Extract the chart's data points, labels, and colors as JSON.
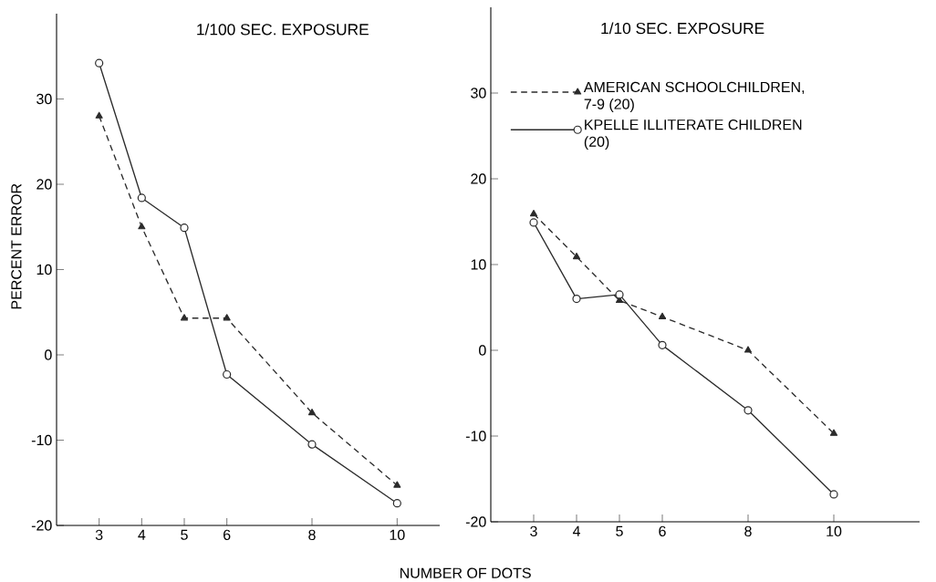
{
  "chart_data": [
    {
      "type": "line",
      "title": "1/100 SEC. EXPOSURE",
      "xlabel": "NUMBER OF DOTS",
      "ylabel": "PERCENT ERROR",
      "x": [
        3,
        4,
        5,
        6,
        8,
        10
      ],
      "xlim": [
        2,
        11
      ],
      "ylim": [
        -20,
        40
      ],
      "xticks": [
        3,
        4,
        5,
        6,
        8,
        10
      ],
      "yticks": [
        -20,
        -10,
        0,
        10,
        20,
        30
      ],
      "grid": false,
      "legend": false,
      "series": [
        {
          "color": "#2b2b2b",
          "marker": "triangle",
          "line_style": "dashed",
          "values": [
            28.0,
            15.0,
            4.3,
            4.3,
            -6.8,
            -15.3
          ]
        },
        {
          "color": "#2b2b2b",
          "marker": "circle",
          "line_style": "solid",
          "values": [
            34.2,
            18.4,
            14.9,
            -2.3,
            -10.5,
            -17.4
          ]
        }
      ]
    },
    {
      "type": "line",
      "title": "1/10 SEC. EXPOSURE",
      "x": [
        3,
        4,
        5,
        6,
        8,
        10
      ],
      "xlim": [
        2,
        12
      ],
      "ylim": [
        -20,
        40
      ],
      "xticks": [
        3,
        4,
        5,
        6,
        8,
        10
      ],
      "yticks": [
        -20,
        -10,
        0,
        10,
        20,
        30
      ],
      "grid": false,
      "legend": "top left",
      "series": [
        {
          "name": "AMERICAN SCHOOLCHILDREN, 7-9 (20)",
          "color": "#2b2b2b",
          "marker": "triangle",
          "line_style": "dashed",
          "values": [
            15.9,
            10.9,
            5.8,
            3.9,
            0,
            -9.7
          ]
        },
        {
          "name": "KPELLE ILLITERATE CHILDREN (20)",
          "color": "#2b2b2b",
          "marker": "circle",
          "line_style": "solid",
          "values": [
            14.9,
            6.0,
            6.5,
            0.6,
            -7.0,
            -16.8
          ]
        }
      ]
    }
  ]
}
